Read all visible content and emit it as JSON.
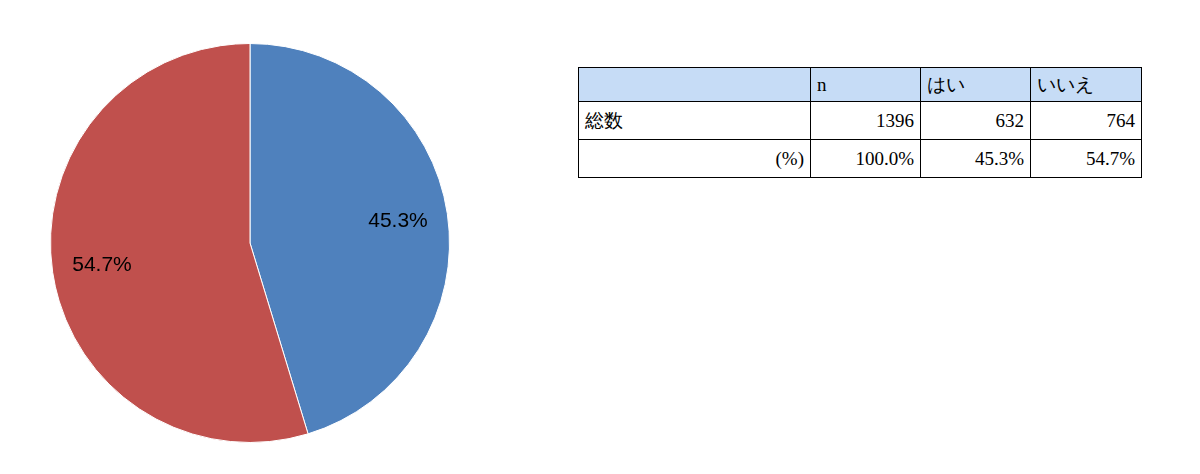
{
  "chart_data": {
    "type": "pie",
    "values": [
      45.3,
      54.7
    ],
    "colors": [
      "#4f81bd",
      "#c0504d"
    ],
    "data_labels": true,
    "value_labels": [
      "45.3%",
      "54.7%"
    ]
  },
  "table": {
    "columns": [
      null,
      "n",
      "はい",
      "いいえ"
    ],
    "rows": [
      [
        "総数",
        "1396",
        "632",
        "764"
      ],
      [
        "(%)",
        "100.0%",
        "45.3%",
        "54.7%"
      ]
    ]
  }
}
